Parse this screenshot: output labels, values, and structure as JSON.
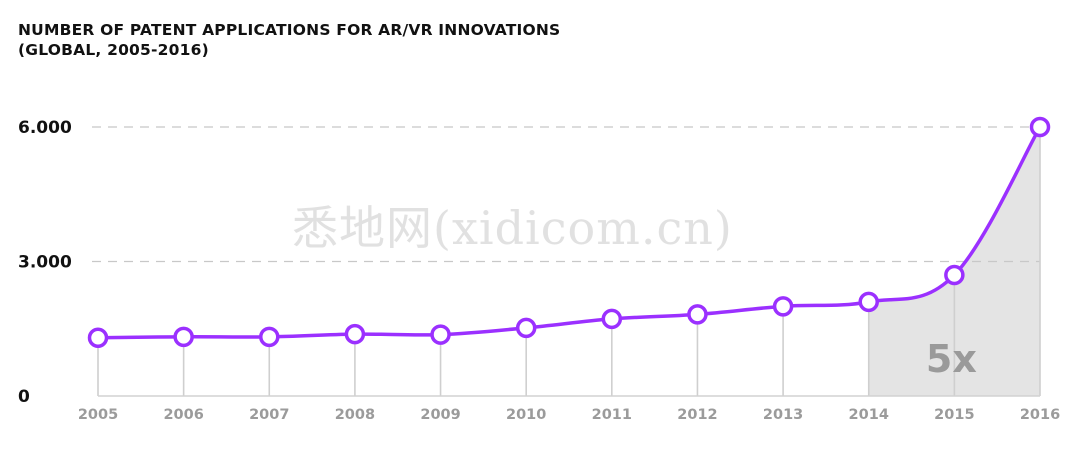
{
  "header": {
    "title_line1": "NUMBER OF PATENT APPLICATIONS FOR AR/VR INNOVATIONS",
    "title_line2": "(GLOBAL, 2005-2016)"
  },
  "watermark": "悉地网(xidicom.cn)",
  "colors": {
    "line": "#9b30ff",
    "shade": "#e4e4e4",
    "grid": "#c8c8c8",
    "drop": "#cfcfcf"
  },
  "chart_data": {
    "type": "line",
    "categories": [
      "2005",
      "2006",
      "2007",
      "2008",
      "2009",
      "2010",
      "2011",
      "2012",
      "2013",
      "2014",
      "2015",
      "2016"
    ],
    "values": [
      1300,
      1320,
      1320,
      1380,
      1370,
      1520,
      1720,
      1820,
      2000,
      2100,
      2700,
      6000
    ],
    "y_ticks": [
      0,
      3000,
      6000
    ],
    "y_tick_labels": [
      "0",
      "3.000",
      "6.000"
    ],
    "ylim": [
      0,
      6000
    ],
    "grid": true,
    "shaded_range": [
      "2014",
      "2016"
    ],
    "annotation": "5x"
  }
}
